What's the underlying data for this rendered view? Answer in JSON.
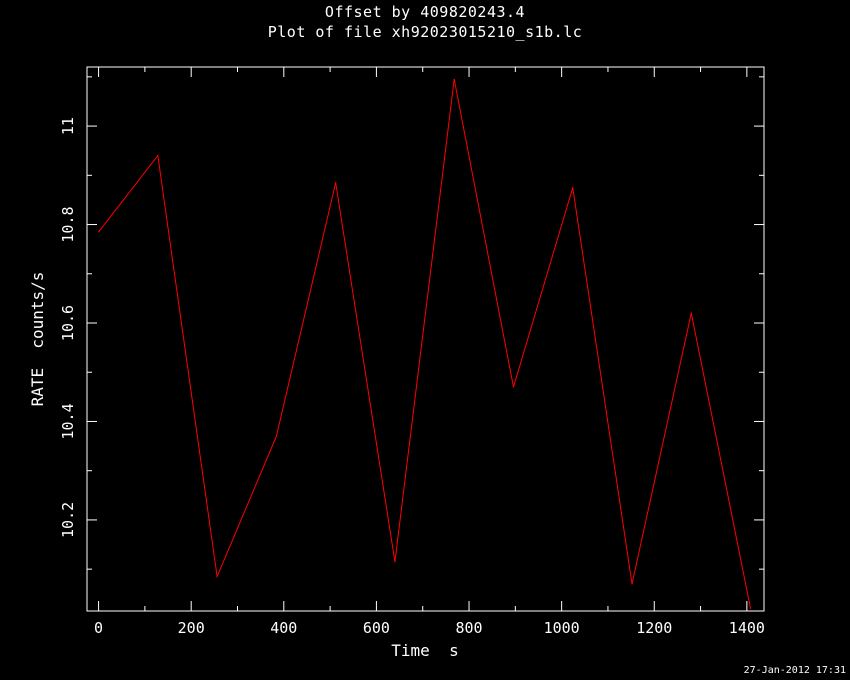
{
  "header": {
    "title_line1": "Offset by 409820243.4",
    "title_line2": "Plot of file xh92023015210_s1b.lc"
  },
  "footer": {
    "timestamp": "27-Jan-2012 17:31"
  },
  "colors": {
    "background": "#000000",
    "axes": "#ffffff",
    "series": "#ff0000"
  },
  "chart_data": {
    "type": "line",
    "title": "Plot of file xh92023015210_s1b.lc",
    "xlabel": "Time  s",
    "ylabel": "RATE  counts/s",
    "xlim": [
      -25,
      1437
    ],
    "ylim": [
      10.015,
      11.12
    ],
    "xticks": [
      0,
      200,
      400,
      600,
      800,
      1000,
      1200,
      1400
    ],
    "xtick_labels": [
      "0",
      "200",
      "400",
      "600",
      "800",
      "1000",
      "1200",
      "1400"
    ],
    "yticks": [
      10.2,
      10.4,
      10.6,
      10.8,
      11.0
    ],
    "ytick_labels": [
      "10.2",
      "10.4",
      "10.6",
      "10.8",
      "11"
    ],
    "grid": false,
    "series": [
      {
        "x": [
          0,
          128,
          256,
          384,
          512,
          640,
          768,
          896,
          1024,
          1152,
          1280,
          1408
        ],
        "y": [
          10.785,
          10.94,
          10.085,
          10.37,
          10.885,
          10.115,
          11.095,
          10.47,
          10.875,
          10.07,
          10.62,
          10.02
        ]
      }
    ]
  }
}
